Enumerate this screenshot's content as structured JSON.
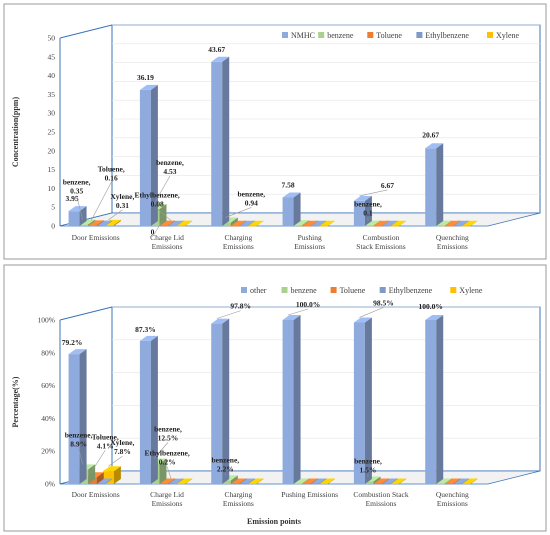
{
  "chart_data": [
    {
      "type": "bar",
      "subtype": "3d-clustered",
      "categories": [
        "Door Emissions",
        "Charge Lid Emissions",
        "Charging Emissions",
        "Pushing Emissions",
        "Combustion Stack Emissions",
        "Quenching Emissions"
      ],
      "category_label_lines": [
        [
          "Door Emissions"
        ],
        [
          "Charge Lid",
          "Emissions"
        ],
        [
          "Charging",
          "Emissions"
        ],
        [
          "Pushing",
          "Emissions"
        ],
        [
          "Combustion",
          "Stack Emissions"
        ],
        [
          "Quenching",
          "Emissions"
        ]
      ],
      "series": [
        {
          "name": "NMHC",
          "color": "#8faadc",
          "values": [
            3.95,
            36.19,
            43.67,
            7.58,
            6.67,
            20.67
          ]
        },
        {
          "name": "benzene",
          "color": "#a9d18e",
          "values": [
            0.35,
            4.53,
            0.94,
            0.2,
            0.1,
            0.1
          ]
        },
        {
          "name": "Toluene",
          "color": "#ed7d31",
          "values": [
            0.16,
            0.1,
            0.05,
            0.05,
            0.05,
            0.05
          ]
        },
        {
          "name": "Ethylbenzene",
          "color": "#7f9ac9",
          "values": [
            0.1,
            0.08,
            0.05,
            0.05,
            0.05,
            0.05
          ]
        },
        {
          "name": "Xylene",
          "color": "#ffc000",
          "values": [
            0.31,
            0.1,
            0.05,
            0.05,
            0.05,
            0.05
          ]
        }
      ],
      "ylabel": "Concentration(ppm)",
      "xlabel": "",
      "ylim": [
        0,
        50
      ],
      "yticks": [
        "0",
        "5",
        "10",
        "15",
        "20",
        "25",
        "30",
        "35",
        "40",
        "45",
        "50"
      ],
      "legend": "top-right",
      "grid": true,
      "data_labels": [
        {
          "cat": 0,
          "series": 0,
          "lines": [
            "3.95"
          ]
        },
        {
          "cat": 0,
          "series": 1,
          "lines": [
            "benzene,",
            "0.35"
          ]
        },
        {
          "cat": 0,
          "series": 2,
          "lines": [
            "Toluene,",
            "0.16"
          ]
        },
        {
          "cat": 0,
          "series": 4,
          "lines": [
            "Xylene,",
            "0.31"
          ]
        },
        {
          "cat": 1,
          "series": 0,
          "lines": [
            "36.19"
          ]
        },
        {
          "cat": 1,
          "series": 1,
          "lines": [
            "benzene,",
            "4.53"
          ]
        },
        {
          "cat": 1,
          "series": 3,
          "lines": [
            "Ethylbenzene,",
            "0.08"
          ]
        },
        {
          "cat": 1,
          "series": 2,
          "lines": [
            "0"
          ]
        },
        {
          "cat": 2,
          "series": 0,
          "lines": [
            "43.67"
          ]
        },
        {
          "cat": 2,
          "series": 1,
          "lines": [
            "benzene,",
            "0.94"
          ]
        },
        {
          "cat": 3,
          "series": 0,
          "lines": [
            "7.58"
          ]
        },
        {
          "cat": 4,
          "series": 0,
          "lines": [
            "6.67"
          ]
        },
        {
          "cat": 4,
          "series": 1,
          "lines": [
            "benzene,",
            "0.1"
          ]
        },
        {
          "cat": 5,
          "series": 0,
          "lines": [
            "20.67"
          ]
        }
      ]
    },
    {
      "type": "bar",
      "subtype": "3d-clustered",
      "categories": [
        "Door Emissions",
        "Charge Lid Emissions",
        "Charging Emissions",
        "Pushing Emissions",
        "Combustion Stack Emissions",
        "Quenching Emissions"
      ],
      "category_label_lines": [
        [
          "Door Emissions"
        ],
        [
          "Charge Lid",
          "Emissions"
        ],
        [
          "Charging",
          "Emissions"
        ],
        [
          "Pushing Emissions"
        ],
        [
          "Combustion Stack",
          "Emissions"
        ],
        [
          "Quenching",
          "Emissions"
        ]
      ],
      "series": [
        {
          "name": "other",
          "color": "#8faadc",
          "values": [
            79.2,
            87.3,
            97.8,
            100.0,
            98.5,
            100.0
          ]
        },
        {
          "name": "benzene",
          "color": "#a9d18e",
          "values": [
            8.9,
            12.5,
            2.2,
            0.3,
            1.5,
            0.3
          ]
        },
        {
          "name": "Toluene",
          "color": "#ed7d31",
          "values": [
            4.1,
            0.3,
            0.3,
            0.3,
            0.3,
            0.3
          ]
        },
        {
          "name": "Ethylbenzene",
          "color": "#7f9ac9",
          "values": [
            0.3,
            0.2,
            0.3,
            0.3,
            0.3,
            0.3
          ]
        },
        {
          "name": "Xylene",
          "color": "#ffc000",
          "values": [
            7.8,
            0.3,
            0.3,
            0.3,
            0.3,
            0.3
          ]
        }
      ],
      "ylabel": "Percentage(%)",
      "xlabel": "Emission points",
      "ylim": [
        0,
        100
      ],
      "yticks": [
        "0%",
        "20%",
        "40%",
        "60%",
        "80%",
        "100%"
      ],
      "legend": "top-right",
      "grid": true,
      "data_labels": [
        {
          "cat": 0,
          "series": 0,
          "lines": [
            "79.2%"
          ]
        },
        {
          "cat": 0,
          "series": 1,
          "lines": [
            "benzene,",
            "8.9%"
          ]
        },
        {
          "cat": 0,
          "series": 2,
          "lines": [
            "Toluene,",
            "4.1%"
          ]
        },
        {
          "cat": 0,
          "series": 4,
          "lines": [
            "Xylene,",
            "7.8%"
          ]
        },
        {
          "cat": 1,
          "series": 0,
          "lines": [
            "87.3%"
          ]
        },
        {
          "cat": 1,
          "series": 1,
          "lines": [
            "benzene,",
            "12.5%"
          ]
        },
        {
          "cat": 1,
          "series": 3,
          "lines": [
            "Ethylbenzene,",
            "0.2%"
          ]
        },
        {
          "cat": 2,
          "series": 0,
          "lines": [
            "97.8%"
          ]
        },
        {
          "cat": 2,
          "series": 1,
          "lines": [
            "benzene,",
            "2.2%"
          ]
        },
        {
          "cat": 3,
          "series": 0,
          "lines": [
            "100.0%"
          ]
        },
        {
          "cat": 4,
          "series": 0,
          "lines": [
            "98.5%"
          ]
        },
        {
          "cat": 4,
          "series": 1,
          "lines": [
            "benzene,",
            "1.5%"
          ]
        },
        {
          "cat": 5,
          "series": 0,
          "lines": [
            "100.0%"
          ]
        }
      ]
    }
  ]
}
